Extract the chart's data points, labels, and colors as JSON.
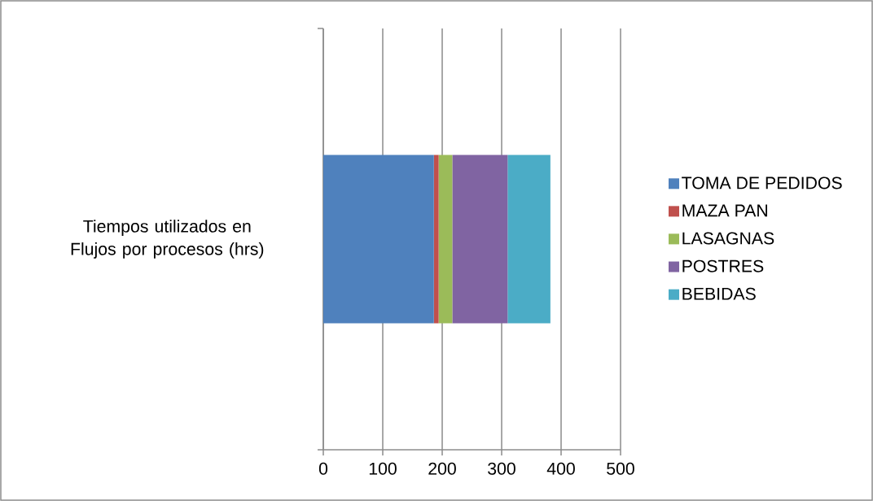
{
  "chart_data": {
    "type": "bar",
    "orientation": "horizontal",
    "stacked": true,
    "categories": [
      "Tiempos utilizados en Flujos por procesos (hrs)"
    ],
    "series": [
      {
        "name": "TOMA DE PEDIDOS",
        "color": "#4f81bd",
        "values": [
          186
        ]
      },
      {
        "name": "MAZA PAN",
        "color": "#c0504d",
        "values": [
          8
        ]
      },
      {
        "name": "LASAGNAS",
        "color": "#9bbb59",
        "values": [
          23
        ]
      },
      {
        "name": "POSTRES",
        "color": "#8064a2",
        "values": [
          93
        ]
      },
      {
        "name": "BEBIDAS",
        "color": "#4bacc6",
        "values": [
          72
        ]
      }
    ],
    "xlim": [
      0,
      500
    ],
    "xticks": [
      0,
      100,
      200,
      300,
      400,
      500
    ],
    "grid": "x",
    "legend": "right"
  }
}
